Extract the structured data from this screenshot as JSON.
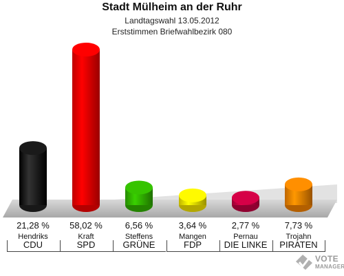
{
  "chart_data": {
    "type": "bar",
    "title": "Stadt Mülheim an der Ruhr",
    "subtitle": [
      "Landtagswahl 13.05.2012",
      "Erststimmen Briefwahlbezirk 080"
    ],
    "ylim": [
      0,
      58.02
    ],
    "grid": false,
    "legend": "none",
    "categories": [
      "CDU",
      "SPD",
      "GRÜNE",
      "FDP",
      "DIE LINKE",
      "PIRATEN"
    ],
    "candidates": [
      "Hendriks",
      "Kraft",
      "Steffens",
      "Mangen",
      "Pernau",
      "Trojahn"
    ],
    "values": [
      21.28,
      58.02,
      6.56,
      3.64,
      2.77,
      7.73
    ],
    "value_labels": [
      "21,28 %",
      "58,02 %",
      "6,56 %",
      "3,64 %",
      "2,77 %",
      "7,73 %"
    ],
    "colors": [
      "#000000",
      "#ff0000",
      "#33bb00",
      "#ffee00",
      "#cc0044",
      "#ff8800"
    ]
  },
  "logo": {
    "line1": "VOTE",
    "line2": "MANAGER",
    "icon": "checkmark-ballot-icon"
  }
}
